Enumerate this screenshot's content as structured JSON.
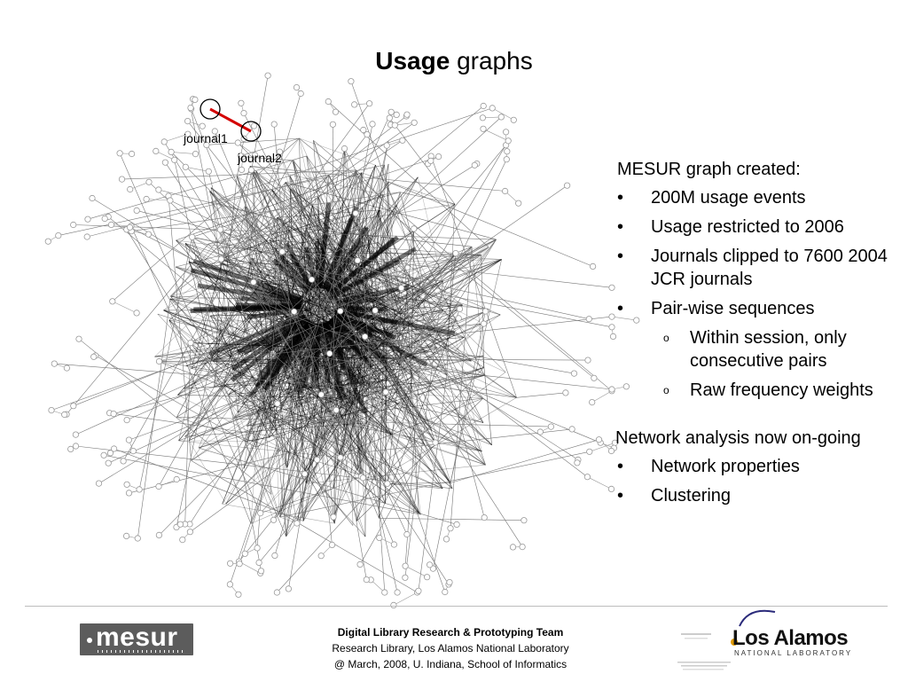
{
  "title": {
    "bold": "Usage",
    "rest": " graphs"
  },
  "graph": {
    "node1_label": "journal1",
    "node2_label": "journal2",
    "edge_color": "#d40000"
  },
  "bullets": {
    "heading1": "MESUR graph created:",
    "items1": [
      "200M usage events",
      "Usage restricted to 2006",
      "Journals clipped to 7600 2004 JCR journals",
      "Pair-wise sequences"
    ],
    "subitems": [
      "Within session, only consecutive pairs",
      "Raw frequency weights"
    ],
    "bullet_glyph": "•",
    "sub_glyph": "o",
    "heading2": "Network analysis now on-going",
    "items2": [
      "Network properties",
      "Clustering"
    ]
  },
  "footer": {
    "line1": "Digital Library Research & Prototyping Team",
    "line2": "Research Library, Los Alamos National Laboratory",
    "line3": "@ March, 2008, U. Indiana, School of Informatics",
    "logo_left": "mesur",
    "logo_right": "Los Alamos",
    "logo_right_sub": "NATIONAL LABORATORY"
  }
}
